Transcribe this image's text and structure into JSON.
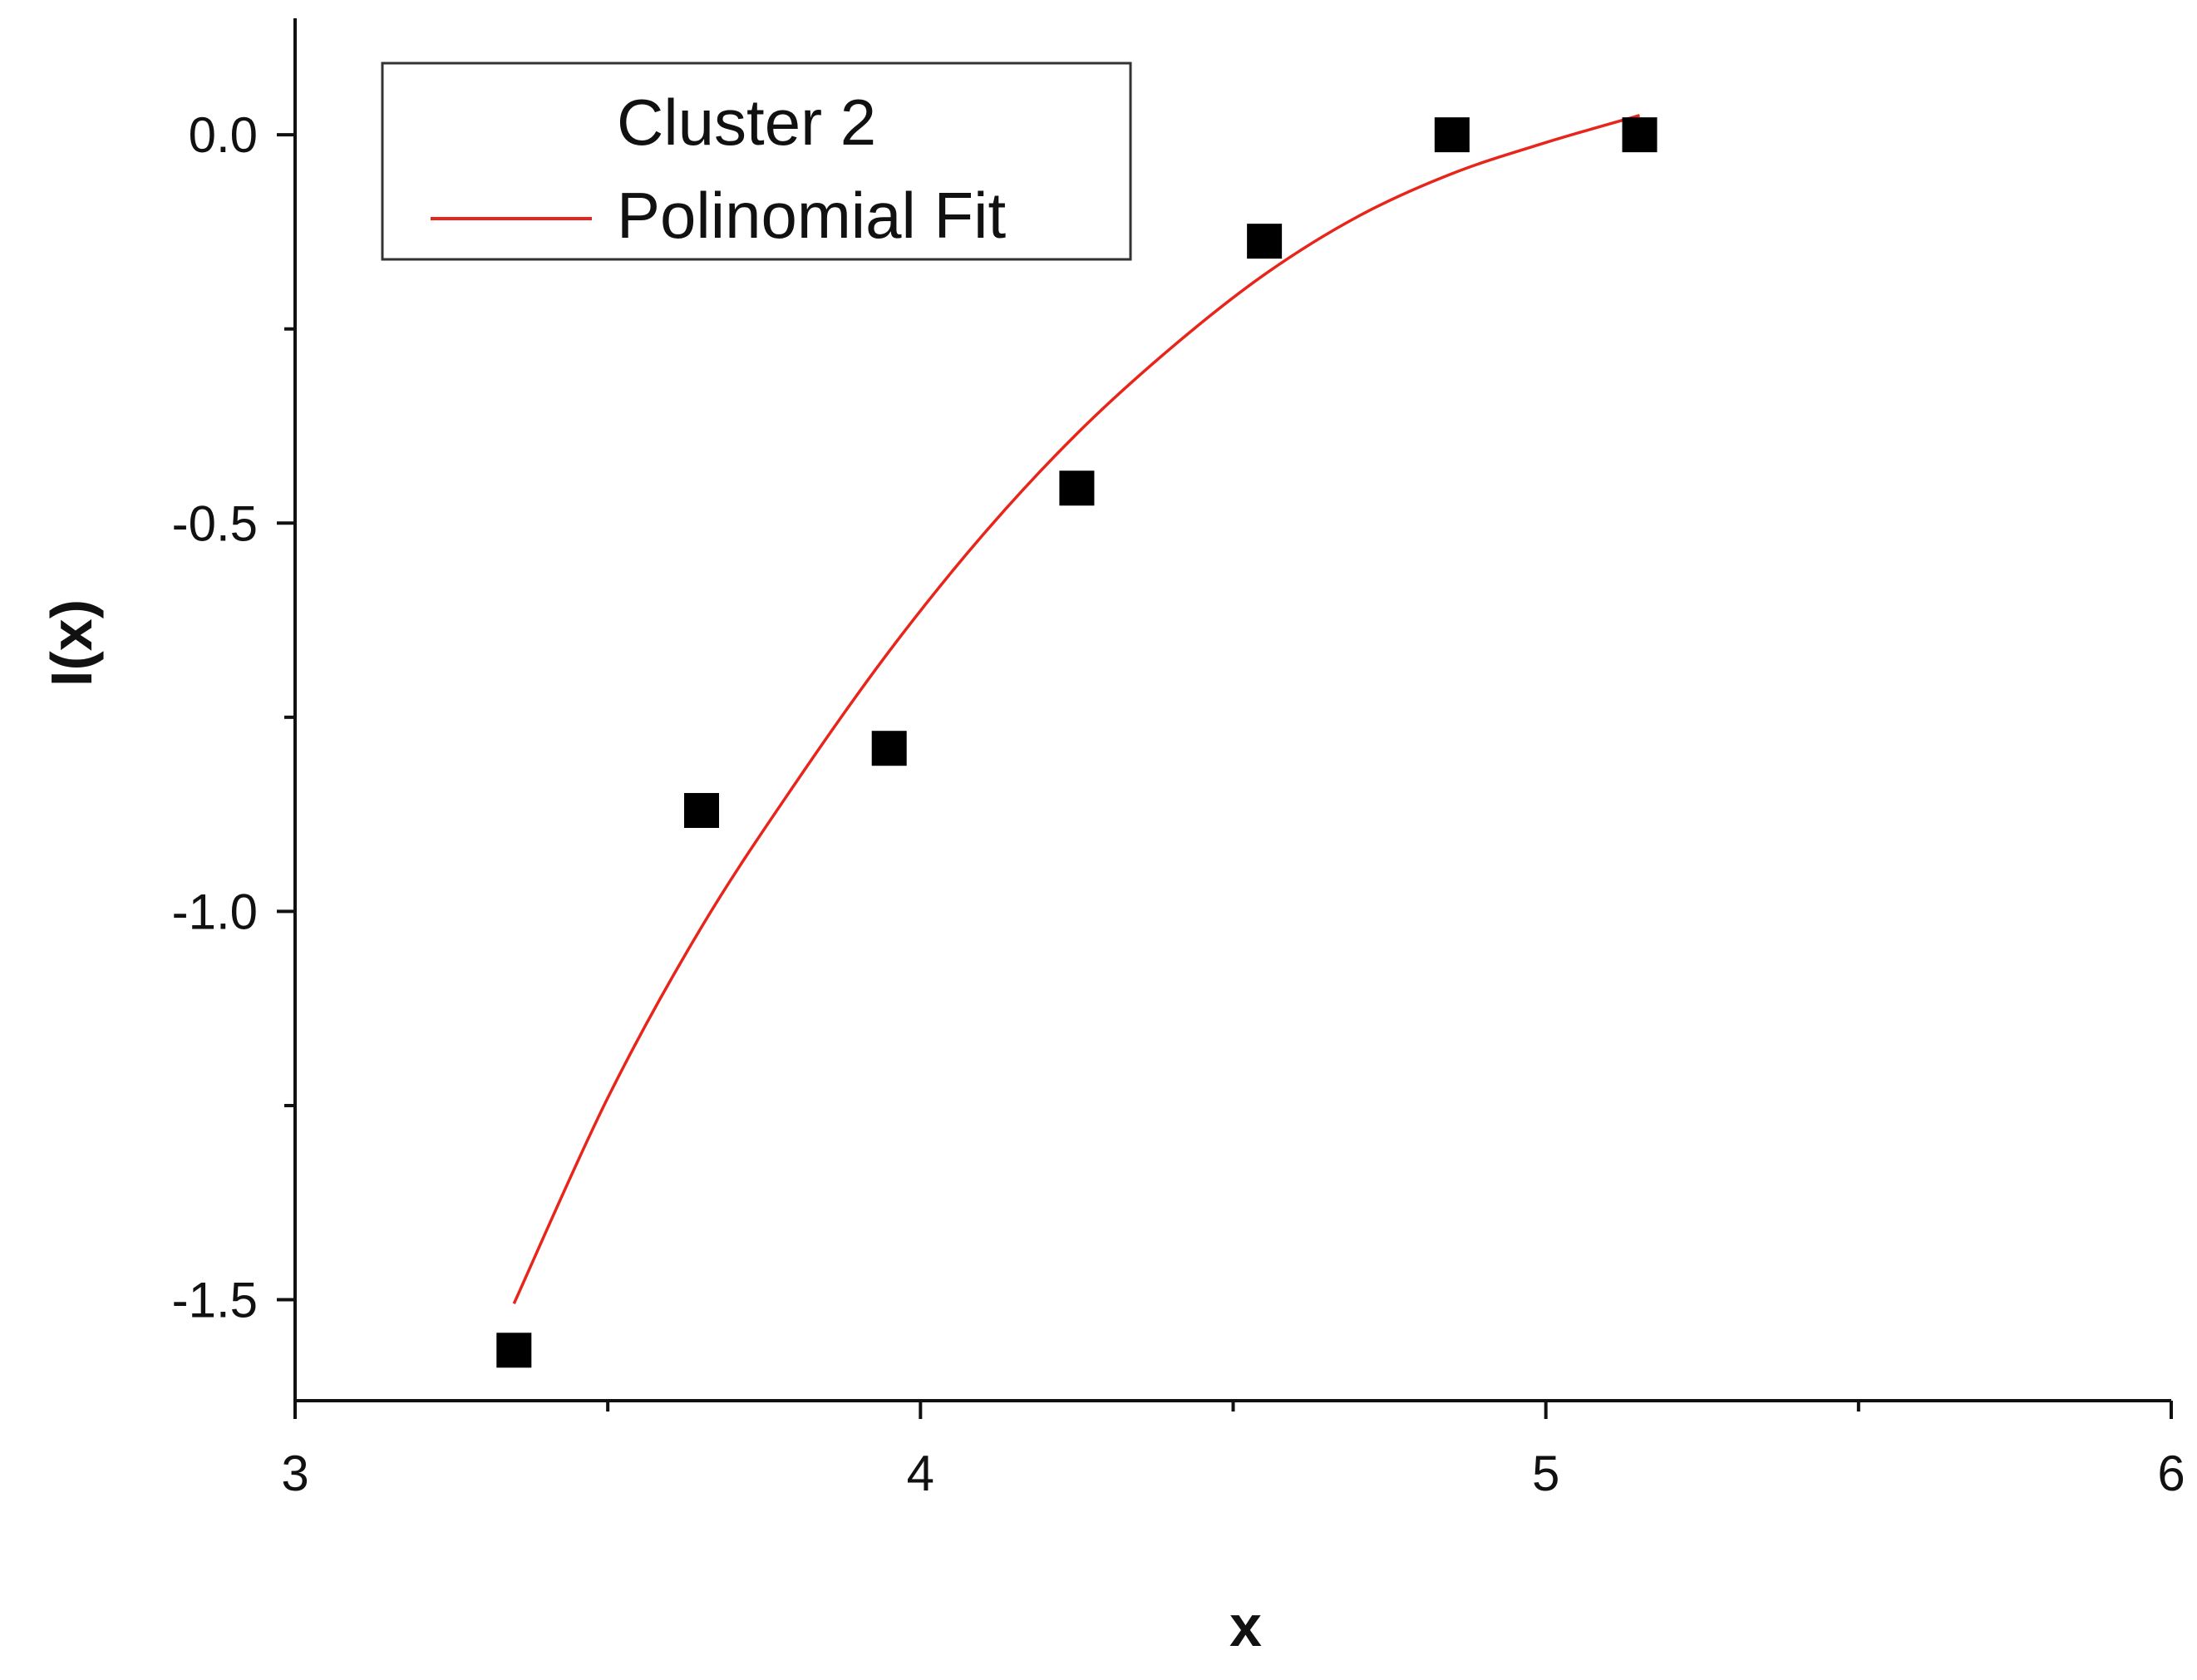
{
  "chart_data": {
    "type": "scatter",
    "xlabel": "x",
    "ylabel": "I(x)",
    "xlim": [
      3,
      6
    ],
    "ylim": [
      -1.63,
      0.15
    ],
    "x_ticks": [
      {
        "value": 3,
        "label": "3"
      },
      {
        "value": 4,
        "label": "4"
      },
      {
        "value": 5,
        "label": "5"
      },
      {
        "value": 6,
        "label": "6"
      }
    ],
    "x_minor_ticks": [
      3.5,
      4.5,
      5.5
    ],
    "y_ticks": [
      {
        "value": 0.0,
        "label": "0.0"
      },
      {
        "value": -0.5,
        "label": "-0.5"
      },
      {
        "value": -1.0,
        "label": "-1.0"
      },
      {
        "value": -1.5,
        "label": "-1.5"
      }
    ],
    "y_minor_ticks": [
      -0.25,
      -0.75,
      -1.25
    ],
    "grid": false,
    "legend_position": "top-left",
    "series": [
      {
        "name": "Cluster 2",
        "kind": "scatter",
        "marker": "square",
        "color": "#000000",
        "x": [
          3.35,
          3.65,
          3.95,
          4.25,
          4.55,
          4.85,
          5.15
        ],
        "y": [
          -1.565,
          -0.87,
          -0.79,
          -0.455,
          -0.137,
          0.0,
          0.0
        ]
      },
      {
        "name": "Polinomial Fit",
        "kind": "line",
        "color": "#e8251b",
        "x": [
          3.35,
          3.5,
          3.65,
          3.8,
          3.95,
          4.1,
          4.25,
          4.4,
          4.55,
          4.7,
          4.85,
          5.0,
          5.15
        ],
        "y": [
          -1.505,
          -1.24,
          -1.02,
          -0.835,
          -0.665,
          -0.515,
          -0.385,
          -0.275,
          -0.18,
          -0.105,
          -0.05,
          -0.01,
          0.025
        ]
      }
    ]
  }
}
